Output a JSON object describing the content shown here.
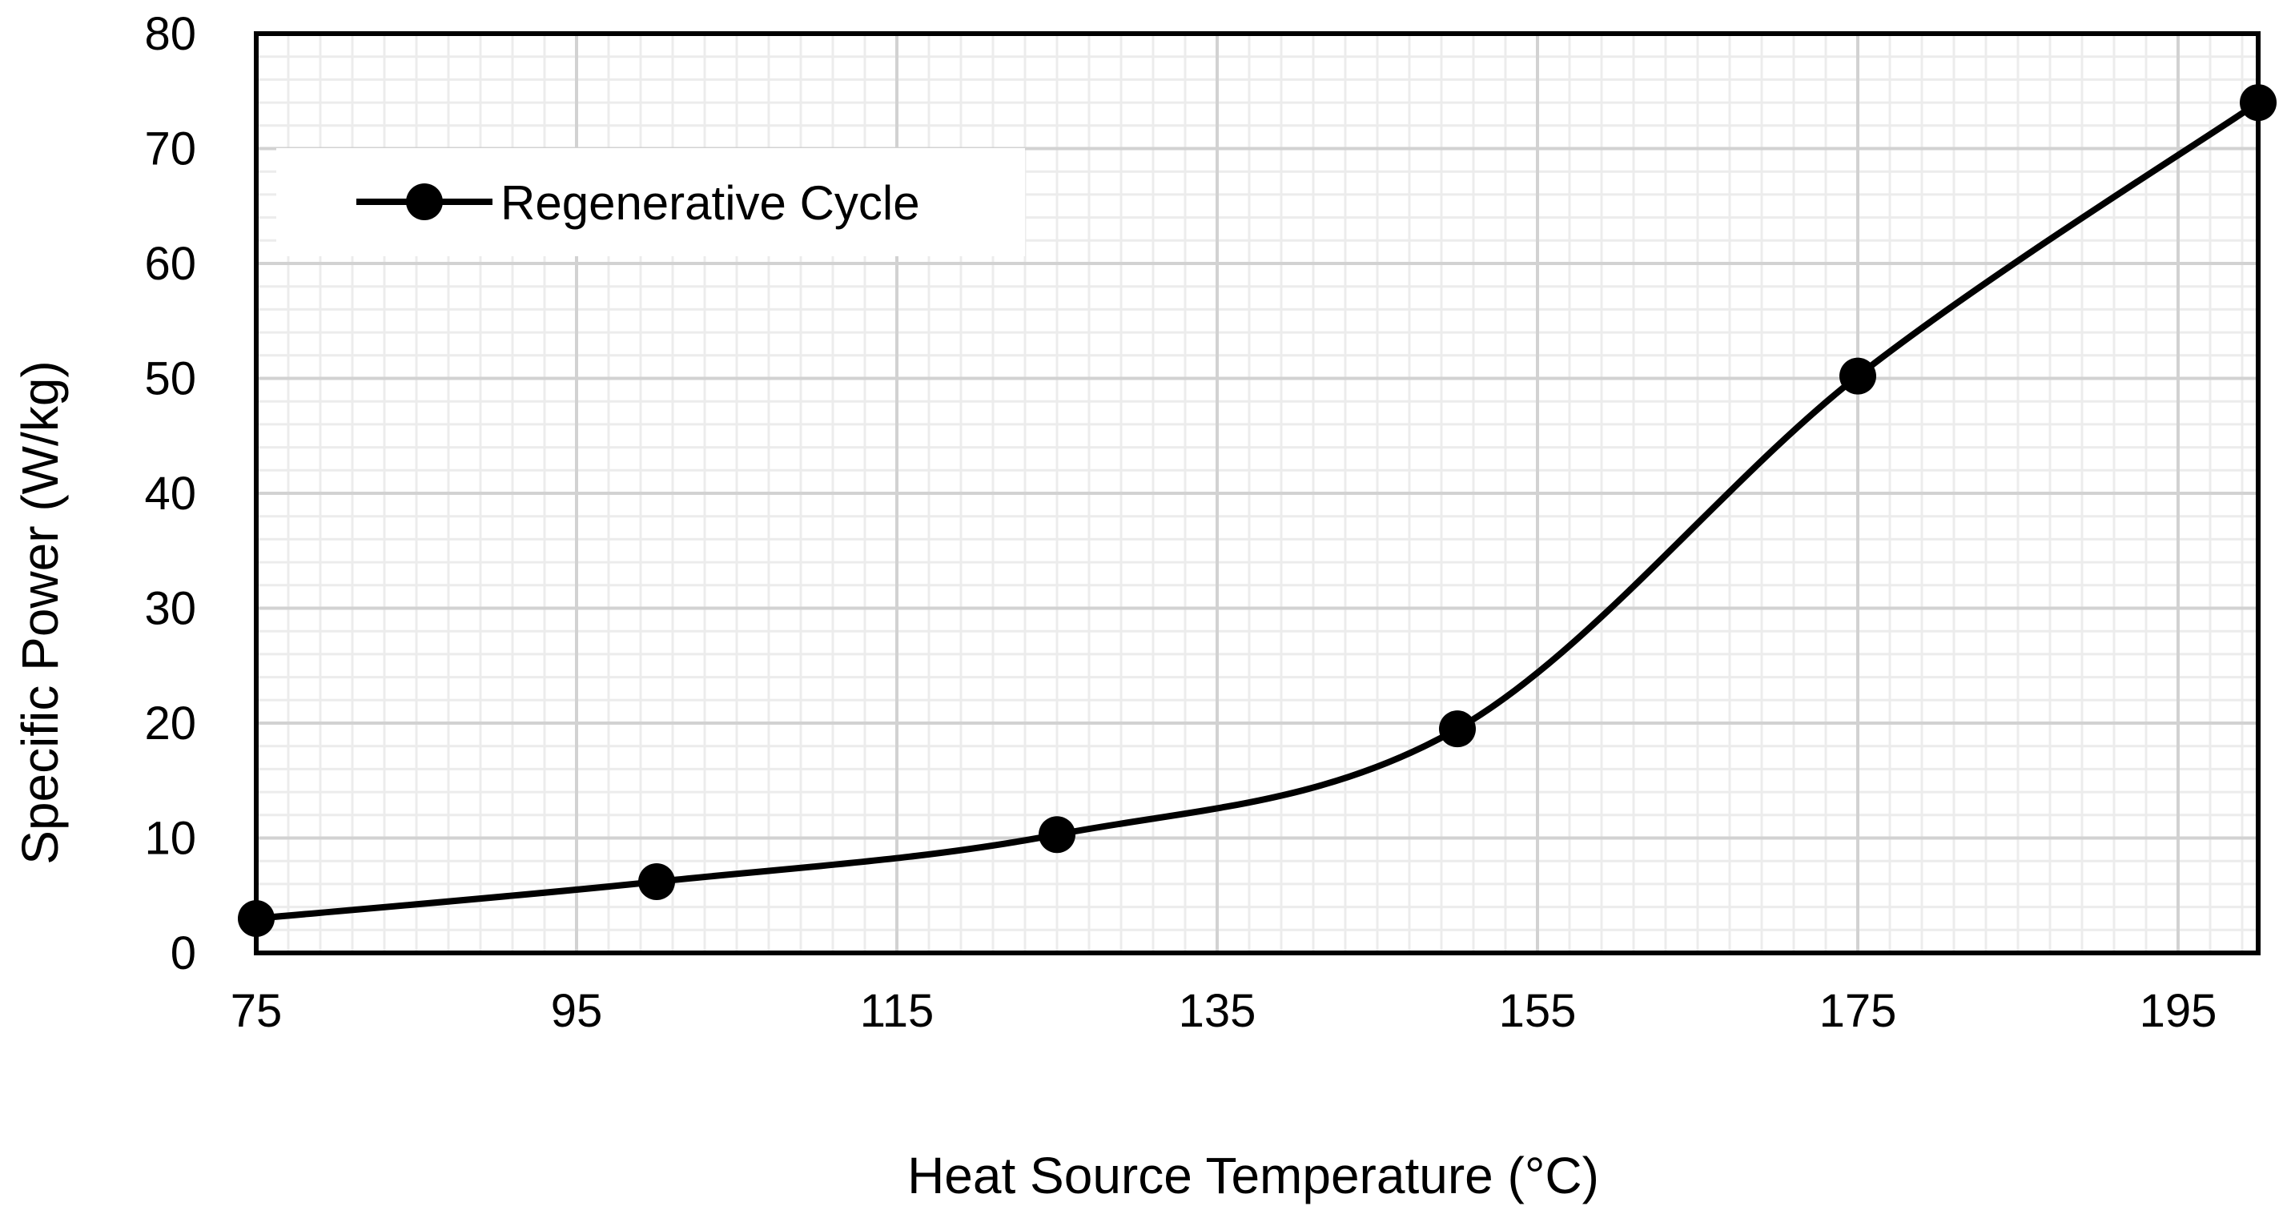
{
  "chart_data": {
    "type": "line",
    "title": "",
    "xlabel": "Heat Source Temperature (°C)",
    "ylabel": "Specific Power (W/kg)",
    "xlim": [
      75,
      200
    ],
    "ylim": [
      0,
      80
    ],
    "x_ticks": [
      75,
      95,
      115,
      135,
      155,
      175,
      195
    ],
    "y_ticks": [
      0,
      10,
      20,
      30,
      40,
      50,
      60,
      70,
      80
    ],
    "x_tick_labels": [
      "75",
      "95",
      "115",
      "135",
      "155",
      "175",
      "195"
    ],
    "y_tick_labels": [
      "0",
      "10",
      "20",
      "30",
      "40",
      "50",
      "60",
      "70",
      "80"
    ],
    "grid": true,
    "smooth": true,
    "legend_position": "top-left",
    "series": [
      {
        "name": "Regenerative Cycle",
        "color": "#000000",
        "x": [
          75,
          100,
          125,
          150,
          175,
          200
        ],
        "y": [
          3.0,
          6.2,
          10.3,
          19.5,
          50.2,
          74.0
        ]
      }
    ]
  }
}
